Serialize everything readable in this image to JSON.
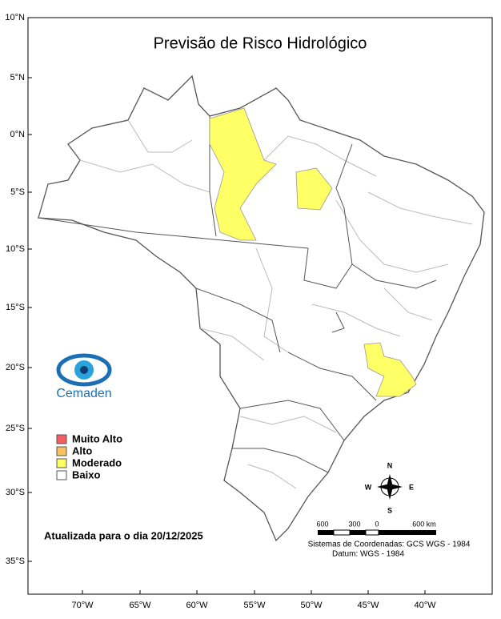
{
  "header": {
    "title": "Previsão de Risco Hidrológico"
  },
  "lat_labels": [
    "10°N",
    "5°N",
    "0°N",
    "5°S",
    "10°S",
    "15°S",
    "20°S",
    "25°S",
    "30°S",
    "35°S"
  ],
  "lon_labels": [
    "70°W",
    "65°W",
    "60°W",
    "55°W",
    "50°W",
    "45°W",
    "40°W"
  ],
  "logo": {
    "text": "Cemaden"
  },
  "legend": {
    "items": [
      "Muito Alto",
      "Alto",
      "Moderado",
      "Baixo"
    ]
  },
  "update_note": "Atualizada para o dia 20/12/2025",
  "compass": {
    "north": "N",
    "south": "S",
    "west": "W",
    "east": "E"
  },
  "scale_bar": {
    "labels": [
      "600",
      "300",
      "0",
      "600 km"
    ]
  },
  "credits": [
    "Sistemas de Coordenadas: GCS WGS - 1984",
    "Datum: WGS - 1984"
  ]
}
